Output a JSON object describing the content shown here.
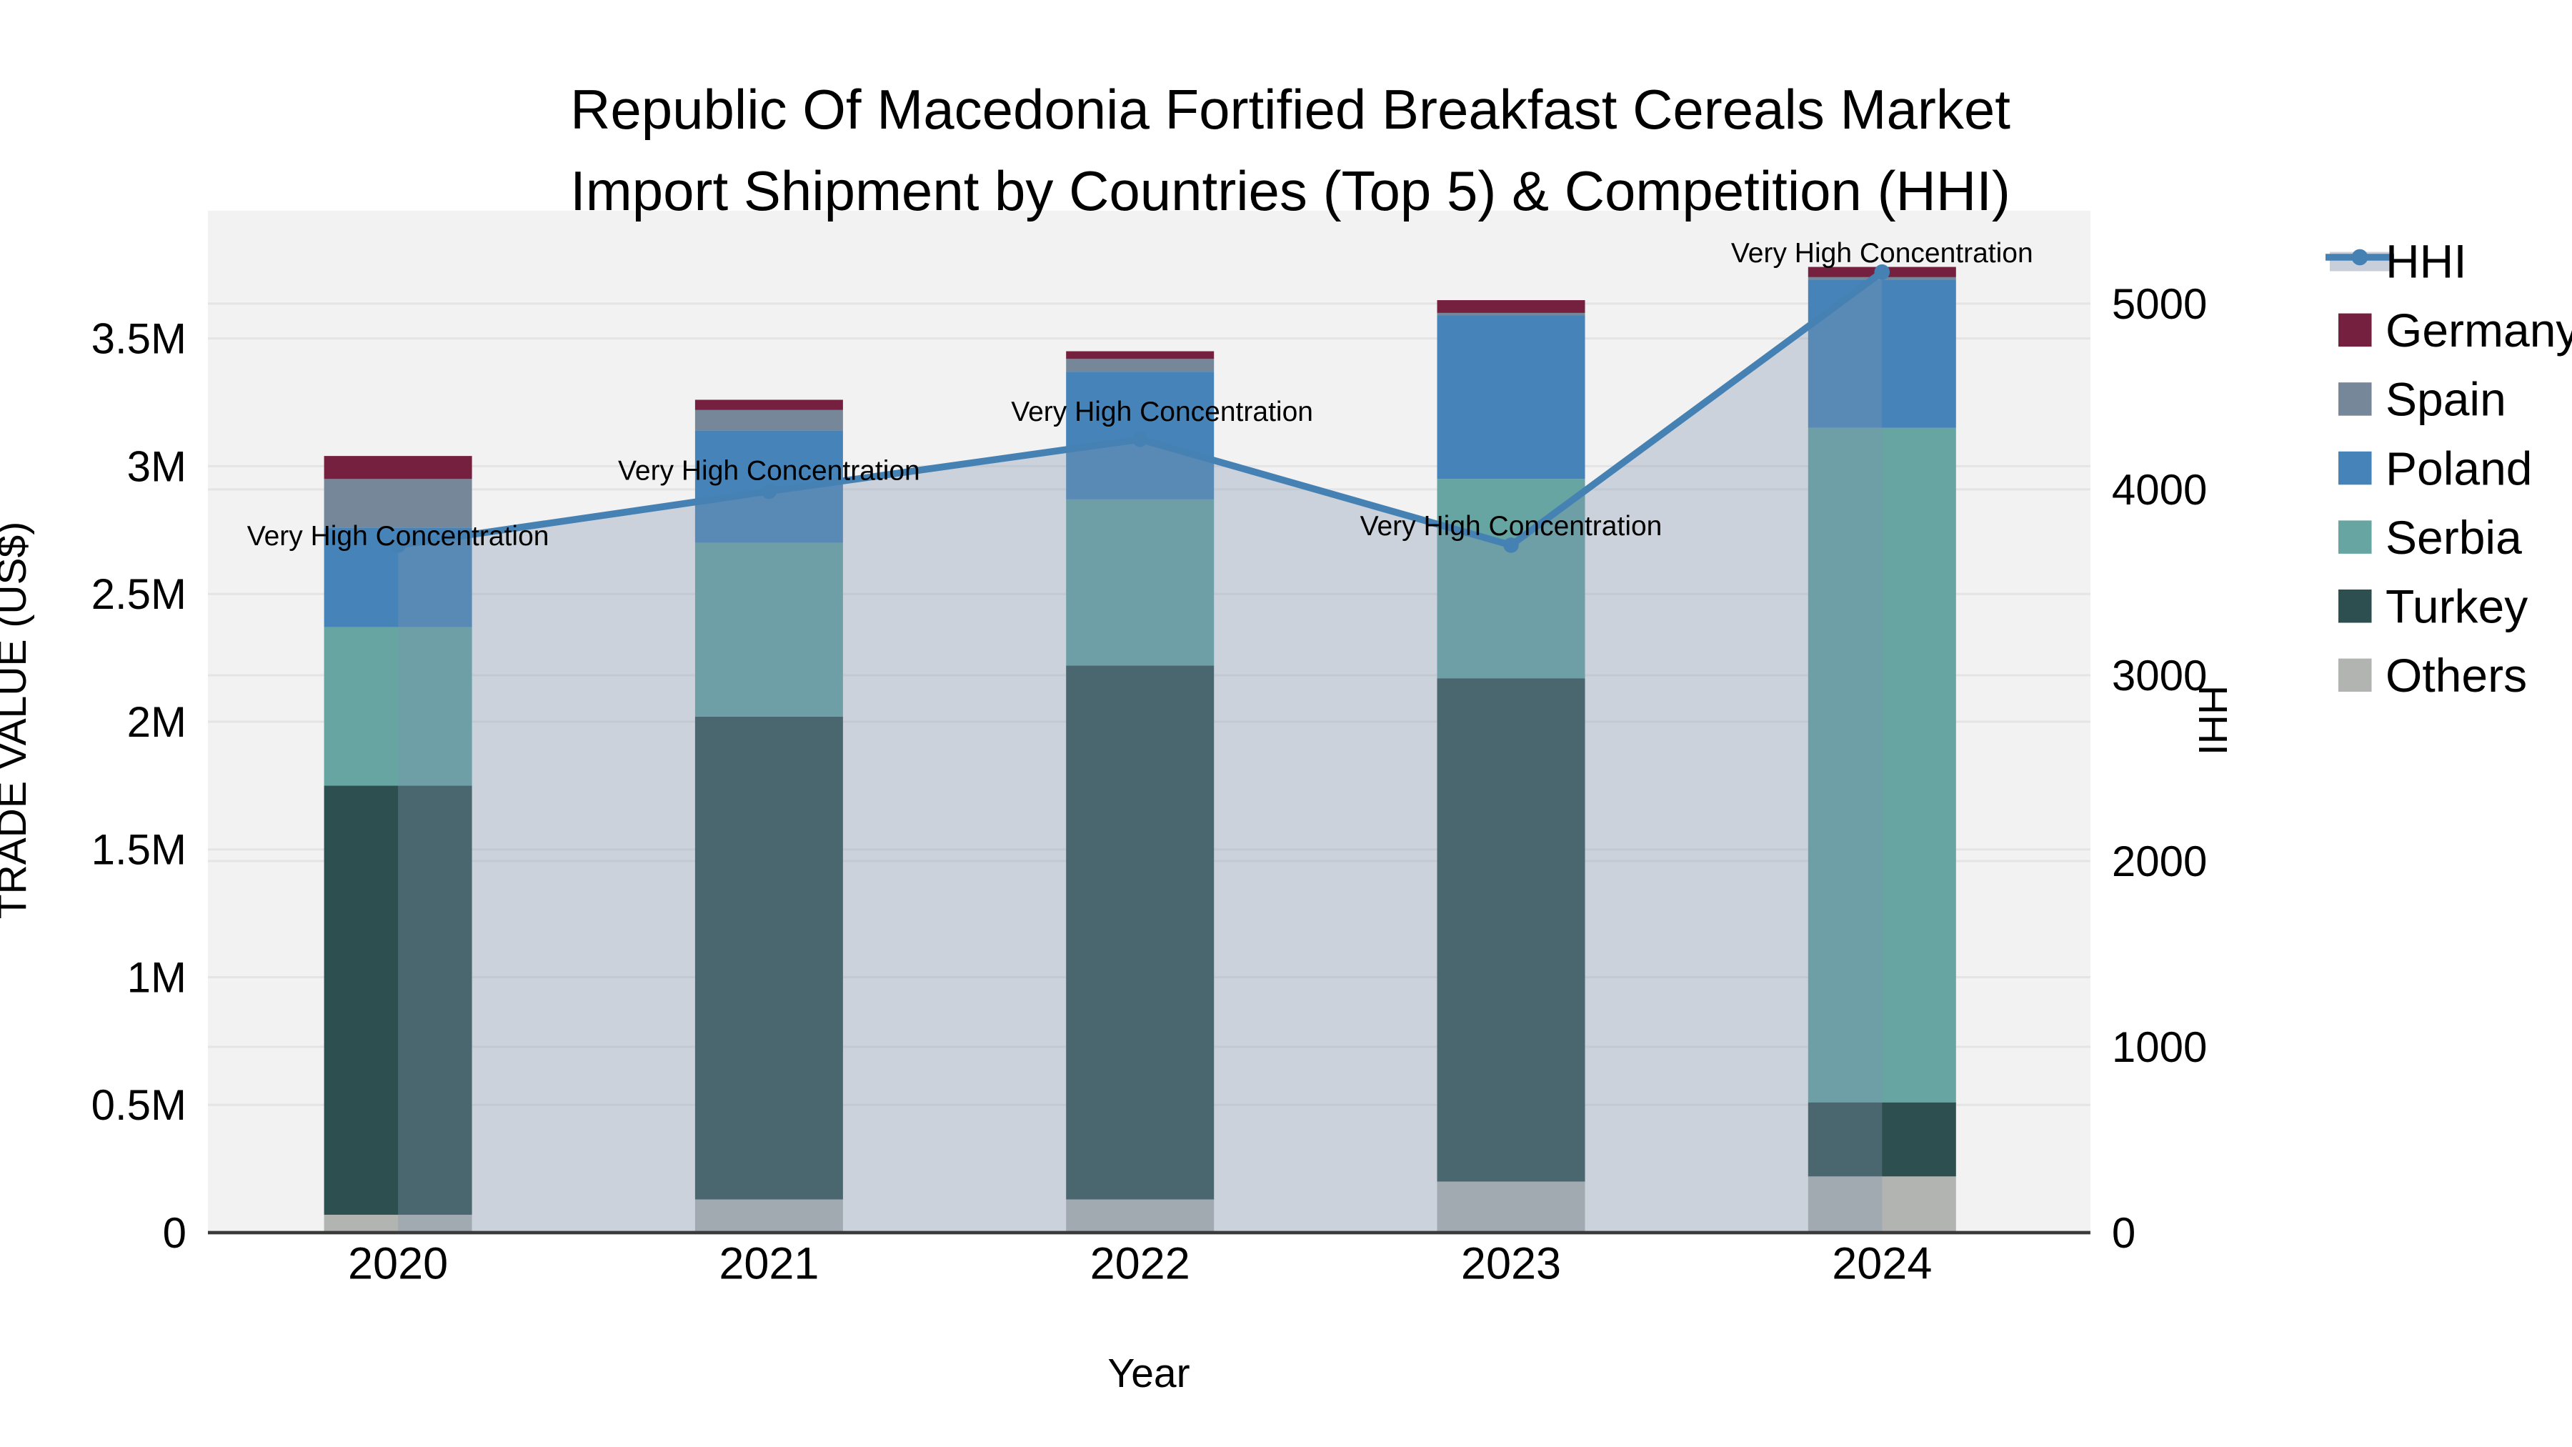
{
  "chart_data": {
    "type": "bar+line",
    "title_line1": "Republic Of Macedonia Fortified Breakfast Cereals Market",
    "title_line2": "Import Shipment by Countries (Top 5) & Competition (HHI)",
    "xlabel": "Year",
    "ylabel_left": "TRADE VALUE (US$)",
    "ylabel_right": "HHI",
    "categories": [
      "2020",
      "2021",
      "2022",
      "2023",
      "2024"
    ],
    "stack_series": [
      {
        "name": "Others",
        "color": "#b2b4b2",
        "values": [
          70000,
          130000,
          130000,
          200000,
          220000
        ]
      },
      {
        "name": "Turkey",
        "color": "#2e4f50",
        "values": [
          1680000,
          1890000,
          2090000,
          1970000,
          290000
        ]
      },
      {
        "name": "Serbia",
        "color": "#66a5a2",
        "values": [
          620000,
          680000,
          650000,
          780000,
          2640000
        ]
      },
      {
        "name": "Poland",
        "color": "#4583b8",
        "values": [
          390000,
          440000,
          500000,
          640000,
          580000
        ]
      },
      {
        "name": "Spain",
        "color": "#76879a",
        "values": [
          190000,
          80000,
          50000,
          10000,
          10000
        ]
      },
      {
        "name": "Germany",
        "color": "#76203f",
        "values": [
          90000,
          40000,
          30000,
          50000,
          40000
        ]
      }
    ],
    "line_series": {
      "name": "HHI",
      "color": "#4681b4",
      "area_fill_rgba": "rgba(130,150,175,0.34)",
      "values": [
        3700,
        3990,
        4270,
        3700,
        5170
      ]
    },
    "annotations": [
      {
        "text": "Very High Concentration",
        "x": "2020"
      },
      {
        "text": "Very High Concentration",
        "x": "2021"
      },
      {
        "text": "Very High Concentration",
        "x": "2022"
      },
      {
        "text": "Very High Concentration",
        "x": "2023"
      },
      {
        "text": "Very High Concentration",
        "x": "2024"
      }
    ],
    "axis_left": {
      "range": [
        0,
        4000000
      ],
      "tick_values": [
        0,
        500000,
        1000000,
        1500000,
        2000000,
        2500000,
        3000000,
        3500000
      ],
      "tick_labels": [
        "0",
        "0.5M",
        "1M",
        "1.5M",
        "2M",
        "2.5M",
        "3M",
        "3.5M"
      ]
    },
    "axis_right": {
      "range": [
        0,
        5500
      ],
      "tick_values": [
        0,
        1000,
        2000,
        3000,
        4000,
        5000
      ],
      "tick_labels": [
        "0",
        "1000",
        "2000",
        "3000",
        "4000",
        "5000"
      ]
    },
    "legend": {
      "items": [
        {
          "label": "HHI",
          "type": "line",
          "color": "#4681b4",
          "band": "#c9cfda"
        },
        {
          "label": "Germany",
          "type": "swatch",
          "color": "#76203f"
        },
        {
          "label": "Spain",
          "type": "swatch",
          "color": "#76879a"
        },
        {
          "label": "Poland",
          "type": "swatch",
          "color": "#4583b8"
        },
        {
          "label": "Serbia",
          "type": "swatch",
          "color": "#66a5a2"
        },
        {
          "label": "Turkey",
          "type": "swatch",
          "color": "#2e4f50"
        },
        {
          "label": "Others",
          "type": "swatch",
          "color": "#b2b4b2"
        }
      ]
    },
    "colors": {
      "plot_bg": "#f2f2f2",
      "paper_bg": "#ffffff",
      "grid": "#e4e4e4",
      "axis_line": "#3a3a3a",
      "text": "#000000"
    }
  }
}
